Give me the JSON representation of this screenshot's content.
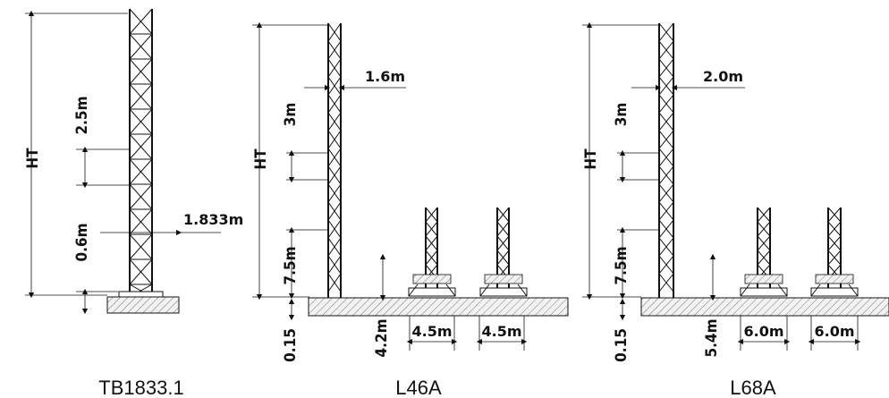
{
  "diagrams": {
    "tb1833": {
      "caption": "TB1833.1",
      "labels": {
        "ht": "HT",
        "section_height": "2.5m",
        "width": "1.833m",
        "base_height": "0.6m"
      }
    },
    "l46a": {
      "caption": "L46A",
      "labels": {
        "ht": "HT",
        "section_height": "3m",
        "width": "1.6m",
        "bottom_height": "7.5m",
        "base_offset": "0.15",
        "base_height": "4.2m",
        "track_left": "4.5m",
        "track_right": "4.5m"
      }
    },
    "l68a": {
      "caption": "L68A",
      "labels": {
        "ht": "HT",
        "section_height": "3m",
        "width": "2.0m",
        "bottom_height": "7.5m",
        "base_offset": "0.15",
        "base_height": "5.4m",
        "track_left": "6.0m",
        "track_right": "6.0m"
      }
    }
  }
}
